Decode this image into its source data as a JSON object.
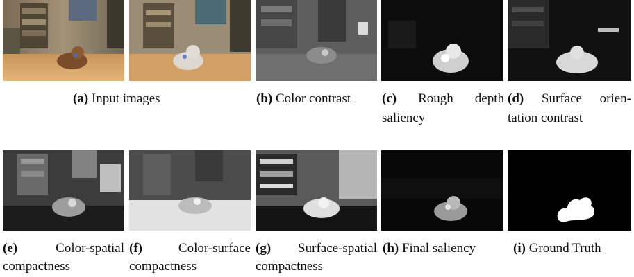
{
  "figure": {
    "row1": [
      {
        "label": "(a)",
        "line1": "Input images",
        "line2": ""
      },
      {
        "label": "(b)",
        "line1": "Color contrast",
        "line2": ""
      },
      {
        "label": "(c)",
        "line1": "Rough depth",
        "line2": "saliency"
      },
      {
        "label": "(d)",
        "line1": "Surface orien-",
        "line2": "tation contrast"
      }
    ],
    "row2": [
      {
        "label": "(e)",
        "line1": "Color-spatial",
        "line2": "compactness"
      },
      {
        "label": "(f)",
        "line1": "Color-surface",
        "line2": "compactness"
      },
      {
        "label": "(g)",
        "line1": "Surface-spatial",
        "line2": "compactness"
      },
      {
        "label": "(h)",
        "line1": "Final saliency",
        "line2": ""
      },
      {
        "label": "(i)",
        "line1": "Ground Truth",
        "line2": ""
      }
    ]
  }
}
